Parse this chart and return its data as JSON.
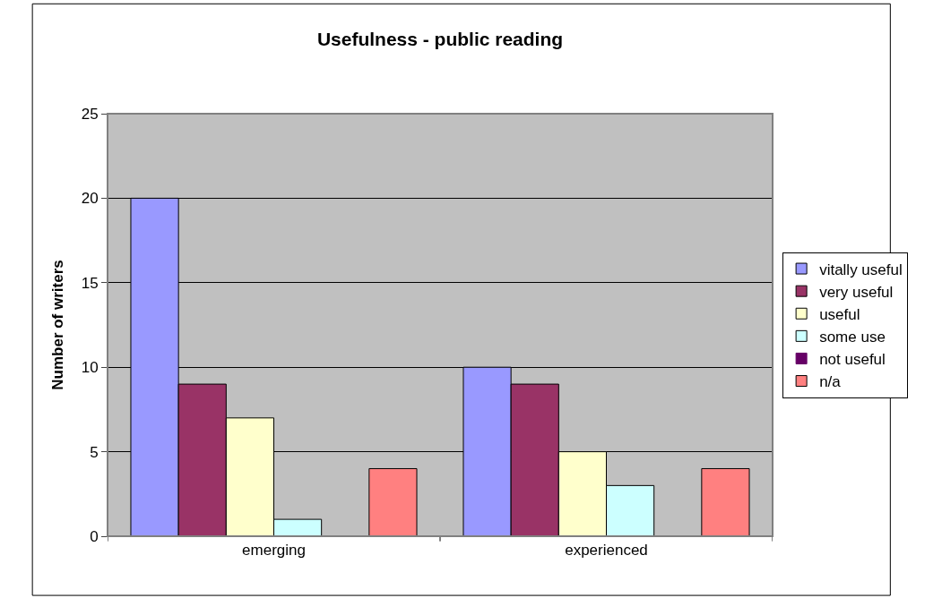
{
  "chart_data": {
    "type": "bar",
    "title": "Usefulness - public reading",
    "ylabel": "Number of writers",
    "categories": [
      "emerging",
      "experienced"
    ],
    "series": [
      {
        "name": "vitally useful",
        "color": "#9999ff",
        "values": [
          20,
          10
        ]
      },
      {
        "name": "very useful",
        "color": "#993366",
        "values": [
          9,
          9
        ]
      },
      {
        "name": "useful",
        "color": "#ffffcc",
        "values": [
          7,
          5
        ]
      },
      {
        "name": "some use",
        "color": "#ccffff",
        "values": [
          1,
          3
        ]
      },
      {
        "name": "not useful",
        "color": "#660066",
        "values": [
          0,
          0
        ]
      },
      {
        "name": "n/a",
        "color": "#ff8080",
        "values": [
          4,
          4
        ]
      }
    ],
    "ylim": [
      0,
      25
    ],
    "yticks": [
      0,
      5,
      10,
      15,
      20,
      25
    ],
    "grid": "y",
    "legend": "right"
  }
}
